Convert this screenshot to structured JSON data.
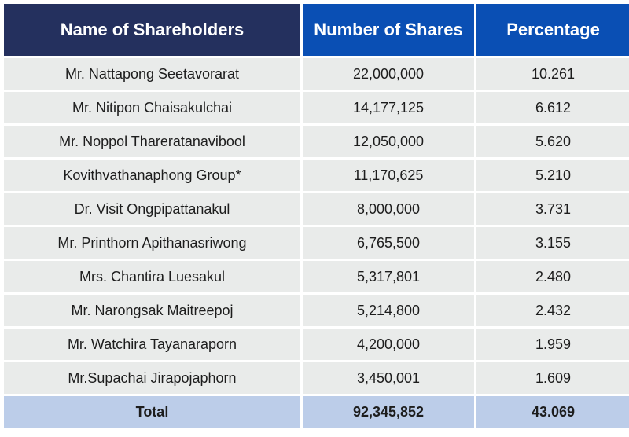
{
  "table": {
    "headers": [
      "Name of Shareholders",
      "Number of Shares",
      "Percentage"
    ],
    "rows": [
      [
        "Mr. Nattapong Seetavorarat",
        "22,000,000",
        "10.261"
      ],
      [
        "Mr. Nitipon Chaisakulchai",
        "14,177,125",
        "6.612"
      ],
      [
        "Mr. Noppol Thareratanavibool",
        "12,050,000",
        "5.620"
      ],
      [
        "Kovithvathanaphong Group*",
        "11,170,625",
        "5.210"
      ],
      [
        "Dr. Visit Ongpipattanakul",
        "8,000,000",
        "3.731"
      ],
      [
        "Mr. Printhorn Apithanasriwong",
        "6,765,500",
        "3.155"
      ],
      [
        "Mrs. Chantira Luesakul",
        "5,317,801",
        "2.480"
      ],
      [
        "Mr. Narongsak Maitreepoj",
        "5,214,800",
        "2.432"
      ],
      [
        "Mr. Watchira Tayanaraporn",
        "4,200,000",
        "1.959"
      ],
      [
        "Mr.Supachai Jirapojaphorn",
        "3,450,001",
        "1.609"
      ]
    ],
    "total": [
      "Total",
      "92,345,852",
      "43.069"
    ]
  },
  "colors": {
    "header_name_bg": "#24305e",
    "header_blue_bg": "#0a4fb4",
    "row_bg": "#e9ebea",
    "total_bg": "#bccde9"
  }
}
